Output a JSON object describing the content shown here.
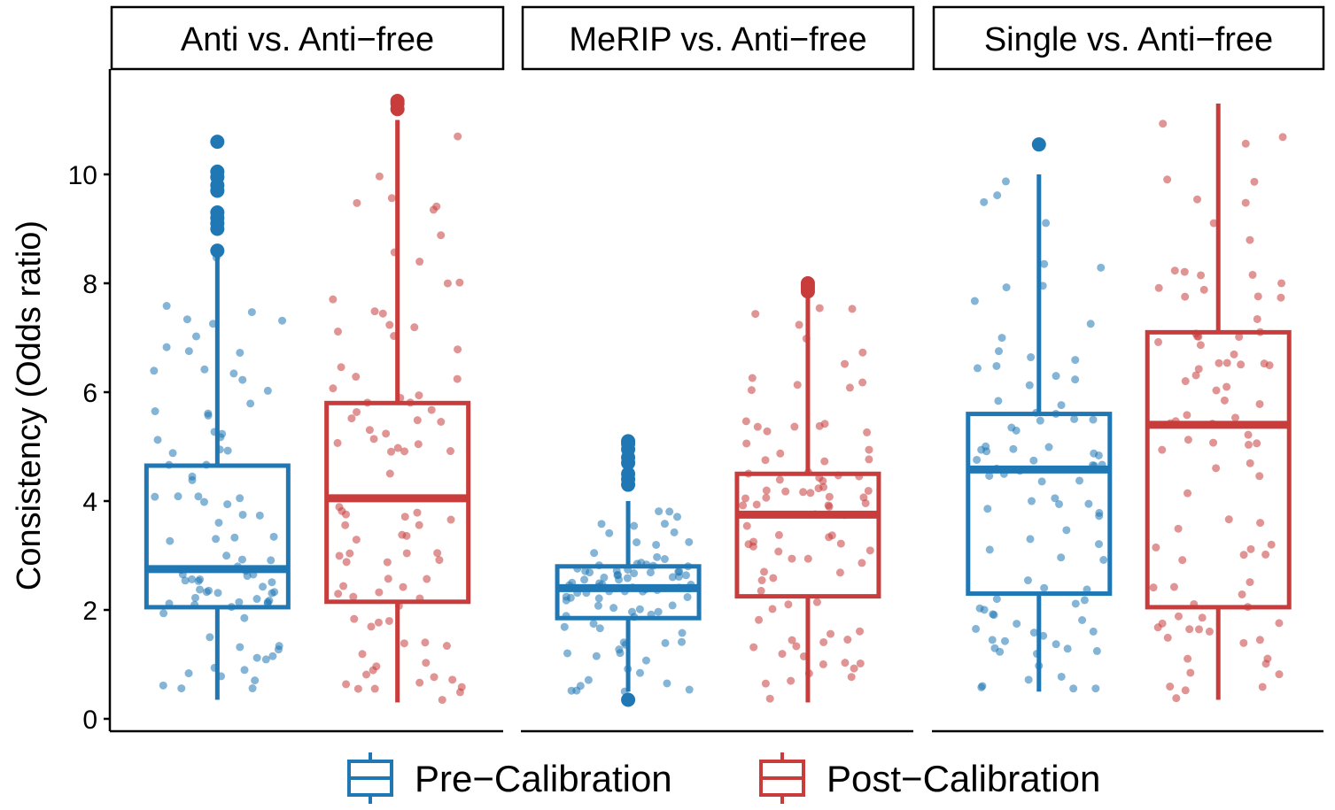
{
  "chart_data": {
    "type": "boxplot",
    "ylabel": "Consistency (Odds ratio)",
    "ylim": [
      0,
      11.6
    ],
    "y_ticks": [
      0,
      2,
      4,
      6,
      8,
      10
    ],
    "grid": false,
    "legend_position": "bottom",
    "colors": {
      "Pre-Calibration": "#1f77b4",
      "Post-Calibration": "#c83c3c"
    },
    "series_names": [
      "Pre−Calibration",
      "Post−Calibration"
    ],
    "panels": [
      {
        "title": "Anti vs. Anti−free",
        "boxes": [
          {
            "series": "Pre-Calibration",
            "q1": 2.05,
            "median": 2.75,
            "q3": 4.65,
            "whisker_low": 0.35,
            "whisker_high": 8.5,
            "outliers": [
              8.6,
              9.0,
              9.1,
              9.2,
              9.3,
              9.7,
              9.8,
              9.95,
              10.05,
              10.6
            ]
          },
          {
            "series": "Post-Calibration",
            "q1": 2.15,
            "median": 4.05,
            "q3": 5.8,
            "whisker_low": 0.3,
            "whisker_high": 11.0,
            "outliers": [
              11.2,
              11.3,
              11.35
            ]
          }
        ]
      },
      {
        "title": "MeRIP vs. Anti−free",
        "boxes": [
          {
            "series": "Pre-Calibration",
            "q1": 1.85,
            "median": 2.4,
            "q3": 2.8,
            "whisker_low": 0.5,
            "whisker_high": 4.0,
            "outliers": [
              0.35,
              4.3,
              4.4,
              4.5,
              4.7,
              4.8,
              4.95,
              5.05,
              5.1
            ]
          },
          {
            "series": "Post-Calibration",
            "q1": 2.25,
            "median": 3.75,
            "q3": 4.5,
            "whisker_low": 0.3,
            "whisker_high": 7.75,
            "outliers": [
              7.85,
              7.9,
              7.95,
              8.0
            ]
          }
        ]
      },
      {
        "title": "Single vs. Anti−free",
        "boxes": [
          {
            "series": "Pre-Calibration",
            "q1": 2.3,
            "median": 4.58,
            "q3": 5.6,
            "whisker_low": 0.5,
            "whisker_high": 10.0,
            "outliers": [
              10.55
            ]
          },
          {
            "series": "Post-Calibration",
            "q1": 2.05,
            "median": 5.4,
            "q3": 7.1,
            "whisker_low": 0.35,
            "whisker_high": 11.3,
            "outliers": []
          }
        ]
      }
    ]
  }
}
